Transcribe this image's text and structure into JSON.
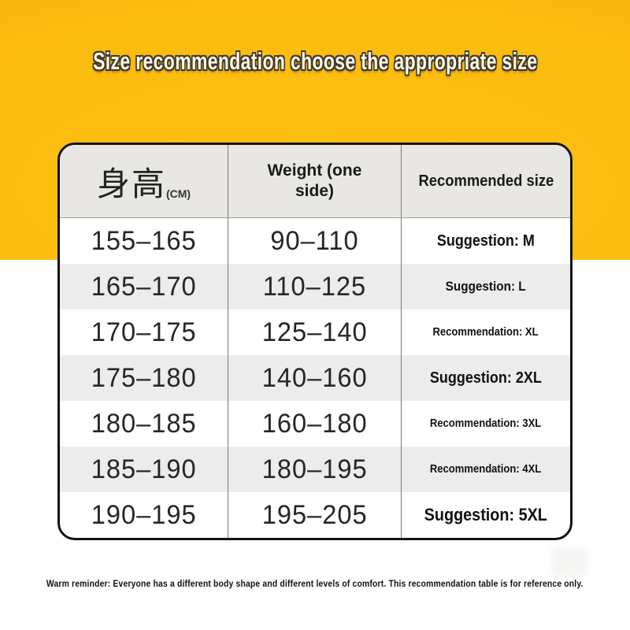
{
  "page": {
    "title": "Size recommendation choose the appropriate size",
    "footer_reminder": "Warm reminder: Everyone has a different body shape and different levels of comfort. This recommendation table is for reference only."
  },
  "colors": {
    "background_yellow": "#FBBB0F",
    "background_yellow_deep": "#F4A908",
    "lower_background": "#FFFFFF",
    "table_border": "#131313",
    "header_bg": "#E8E7E4",
    "zebra_row_bg": "#ECECEC",
    "column_divider": "#787878",
    "title_fill": "#FDF7E4",
    "title_outline": "#3F372C",
    "text": "#1A1A1A"
  },
  "table": {
    "header": {
      "col1_main": "身高",
      "col1_sub": "(CM)",
      "col2": "Weight (one side)",
      "col3": "Recommended size"
    },
    "rows": [
      {
        "height": "155–165",
        "weight": "90–110",
        "size": "Suggestion: M"
      },
      {
        "height": "165–170",
        "weight": "110–125",
        "size": "Suggestion: L"
      },
      {
        "height": "170–175",
        "weight": "125–140",
        "size": "Recommendation: XL"
      },
      {
        "height": "175–180",
        "weight": "140–160",
        "size": "Suggestion: 2XL"
      },
      {
        "height": "180–185",
        "weight": "160–180",
        "size": "Recommendation: 3XL"
      },
      {
        "height": "185–190",
        "weight": "180–195",
        "size": "Recommendation: 4XL"
      },
      {
        "height": "190–195",
        "weight": "195–205",
        "size": "Suggestion: 5XL"
      }
    ]
  },
  "chart_data": {
    "type": "table",
    "title": "Size recommendation choose the appropriate size",
    "columns": [
      "身高(CM)",
      "Weight (one side)",
      "Recommended size"
    ],
    "rows": [
      [
        "155–165",
        "90–110",
        "Suggestion: M"
      ],
      [
        "165–170",
        "110–125",
        "Suggestion: L"
      ],
      [
        "170–175",
        "125–140",
        "Recommendation: XL"
      ],
      [
        "175–180",
        "140–160",
        "Suggestion: 2XL"
      ],
      [
        "180–185",
        "160–180",
        "Recommendation: 3XL"
      ],
      [
        "185–190",
        "180–195",
        "Recommendation: 4XL"
      ],
      [
        "190–195",
        "195–205",
        "Suggestion: 5XL"
      ]
    ],
    "footnote": "Warm reminder: Everyone has a different body shape and different levels of comfort. This recommendation table is for reference only."
  }
}
